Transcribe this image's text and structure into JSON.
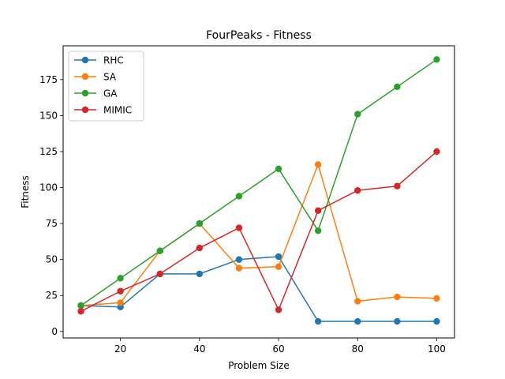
{
  "chart_data": {
    "type": "line",
    "title": "FourPeaks - Fitness",
    "xlabel": "Problem Size",
    "ylabel": "Fitness",
    "x": [
      10,
      20,
      30,
      40,
      50,
      60,
      70,
      80,
      90,
      100
    ],
    "xlim": [
      5.5,
      104.5
    ],
    "ylim": [
      -4.5,
      198.5
    ],
    "xticks": [
      20,
      40,
      60,
      80,
      100
    ],
    "yticks": [
      0,
      25,
      50,
      75,
      100,
      125,
      150,
      175
    ],
    "grid": false,
    "legend_position": "top-left",
    "series": [
      {
        "name": "RHC",
        "color": "#1f77b4",
        "values": [
          18,
          17,
          40,
          40,
          50,
          52,
          7,
          7,
          7,
          7
        ]
      },
      {
        "name": "SA",
        "color": "#ff7f0e",
        "values": [
          18,
          20,
          56,
          75,
          44,
          45,
          116,
          21,
          24,
          23
        ]
      },
      {
        "name": "GA",
        "color": "#2ca02c",
        "values": [
          18,
          37,
          56,
          75,
          94,
          113,
          70,
          151,
          170,
          189
        ]
      },
      {
        "name": "MIMIC",
        "color": "#d62728",
        "values": [
          14,
          28,
          40,
          58,
          72,
          15,
          84,
          98,
          101,
          125
        ]
      }
    ]
  }
}
